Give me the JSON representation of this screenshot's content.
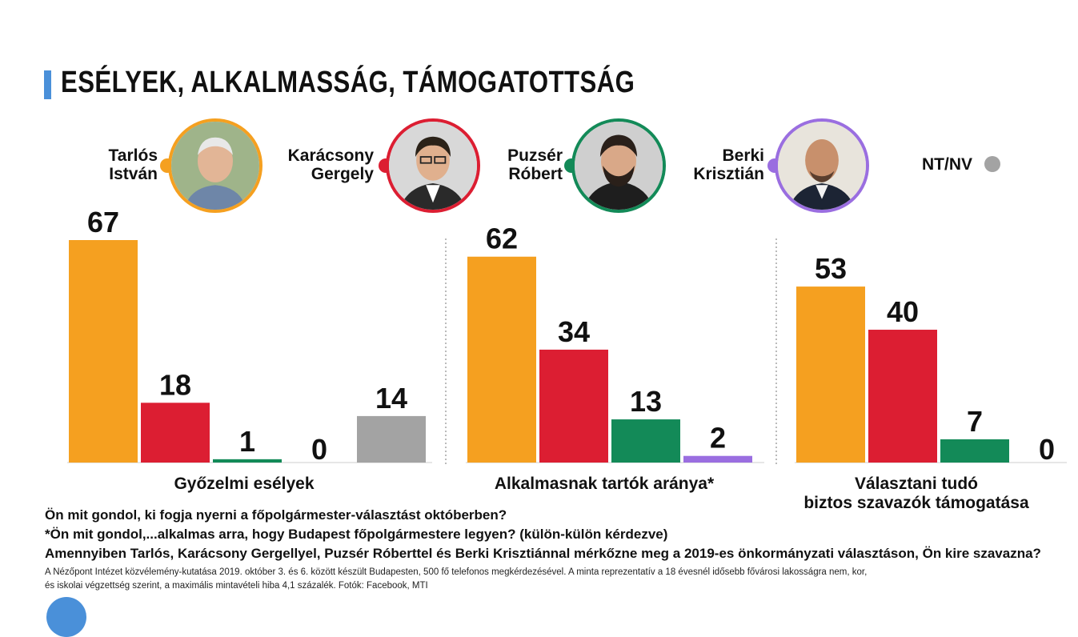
{
  "title": "ESÉLYEK, ALKALMASSÁG, TÁMOGATOTTSÁG",
  "colors": {
    "accent": "#4a90d9",
    "tarlos": "#f5a020",
    "karacsony": "#dc1e32",
    "puzser": "#138a58",
    "berki": "#9a6ee0",
    "ntnv": "#a3a3a3"
  },
  "legend": {
    "candidates": [
      {
        "line1": "Tarlós",
        "line2": "István",
        "color": "#f5a020"
      },
      {
        "line1": "Karácsony",
        "line2": "Gergely",
        "color": "#dc1e32"
      },
      {
        "line1": "Puzsér",
        "line2": "Róbert",
        "color": "#138a58"
      },
      {
        "line1": "Berki",
        "line2": "Krisztián",
        "color": "#9a6ee0"
      }
    ],
    "ntnv": {
      "label": "NT/NV",
      "color": "#a3a3a3"
    }
  },
  "chart_data": [
    {
      "type": "bar",
      "title": "Győzelmi esélyek",
      "categories": [
        "Tarlós István",
        "Karácsony Gergely",
        "Puzsér Róbert",
        "Berki Krisztián",
        "NT/NV"
      ],
      "values": [
        67,
        18,
        1,
        0,
        14
      ],
      "colors": [
        "#f5a020",
        "#dc1e32",
        "#138a58",
        "#9a6ee0",
        "#a3a3a3"
      ],
      "labels": [
        "67",
        "18",
        "1",
        "0",
        "14"
      ]
    },
    {
      "type": "bar",
      "title": "Alkalmasnak tartók aránya*",
      "categories": [
        "Tarlós István",
        "Karácsony Gergely",
        "Puzsér Róbert",
        "Berki Krisztián"
      ],
      "values": [
        62,
        34,
        13,
        2
      ],
      "colors": [
        "#f5a020",
        "#dc1e32",
        "#138a58",
        "#9a6ee0"
      ],
      "labels": [
        "62",
        "34",
        "13",
        "2"
      ]
    },
    {
      "type": "bar",
      "title": "Választani tudó\nbiztos szavazók támogatása",
      "title_line1": "Választani tudó",
      "title_line2": "biztos szavazók támogatása",
      "categories": [
        "Tarlós István",
        "Karácsony Gergely",
        "Puzsér Róbert",
        "Berki Krisztián"
      ],
      "values": [
        53,
        40,
        7,
        0
      ],
      "colors": [
        "#f5a020",
        "#dc1e32",
        "#138a58",
        "#9a6ee0"
      ],
      "labels": [
        "53",
        "40",
        "7",
        "0"
      ]
    }
  ],
  "questions": [
    "Ön mit gondol, ki fogja nyerni a főpolgármester-választást októberben?",
    "*Ön mit gondol,...alkalmas arra, hogy Budapest főpolgármestere legyen? (külön-külön kérdezve)",
    "Amennyiben Tarlós, Karácsony Gergellyel, Puzsér Róberttel és Berki Krisztiánnal mérkőzne meg a 2019-es önkormányzati választáson, Ön kire szavazna?"
  ],
  "notes": [
    "A Nézőpont Intézet közvélemény-kutatása 2019. október 3. és 6. között készült Budapesten, 500 fő telefonos megkérdezésével. A minta reprezentatív a 18 évesnél idősebb fővárosi lakosságra nem, kor,",
    "és iskolai végzettség szerint, a maximális mintavételi hiba 4,1 százalék. Fotók: Facebook, MTI"
  ]
}
